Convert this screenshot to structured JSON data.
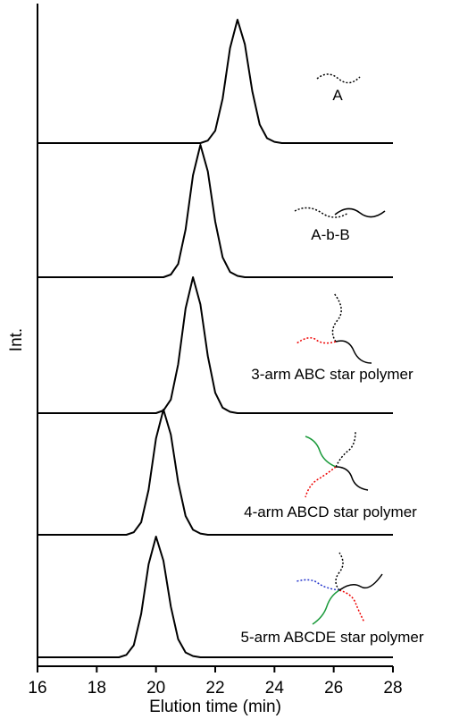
{
  "chart_data": {
    "type": "line",
    "xlabel": "Elution time (min)",
    "ylabel": "Int.",
    "x": [
      16,
      16.25,
      16.5,
      16.75,
      17,
      17.25,
      17.5,
      17.75,
      18,
      18.25,
      18.5,
      18.75,
      19,
      19.25,
      19.5,
      19.75,
      20,
      20.25,
      20.5,
      20.75,
      21,
      21.25,
      21.5,
      21.75,
      22,
      22.25,
      22.5,
      22.75,
      23,
      23.25,
      23.5,
      23.75,
      24,
      24.25,
      24.5,
      24.75,
      25,
      25.25,
      25.5,
      25.75,
      26,
      26.25,
      26.5,
      26.75,
      27,
      27.25,
      27.5,
      27.75,
      28
    ],
    "xlim": [
      16,
      28
    ],
    "xticks": [
      16,
      18,
      20,
      22,
      24,
      26,
      28
    ],
    "series": [
      {
        "name": "A",
        "color": "#000000",
        "values": [
          0,
          0,
          0,
          0,
          0,
          0,
          0,
          0,
          0,
          0,
          0,
          0,
          0,
          0,
          0,
          0,
          0,
          0,
          0,
          0,
          0,
          0,
          0,
          0.02,
          0.1,
          0.36,
          0.77,
          1,
          0.8,
          0.42,
          0.15,
          0.04,
          0.01,
          0,
          0,
          0,
          0,
          0,
          0,
          0,
          0,
          0,
          0,
          0,
          0,
          0,
          0,
          0,
          0
        ]
      },
      {
        "name": "A-b-B",
        "color": "#000000",
        "values": [
          0,
          0,
          0,
          0,
          0,
          0,
          0,
          0,
          0,
          0,
          0,
          0,
          0,
          0,
          0,
          0,
          0,
          0,
          0.02,
          0.1,
          0.36,
          0.77,
          1,
          0.8,
          0.42,
          0.15,
          0.04,
          0.01,
          0,
          0,
          0,
          0,
          0,
          0,
          0,
          0,
          0,
          0,
          0,
          0,
          0,
          0,
          0,
          0,
          0,
          0,
          0,
          0,
          0
        ]
      },
      {
        "name": "3-arm ABC star polymer",
        "color": "#000000",
        "values": [
          0,
          0,
          0,
          0,
          0,
          0,
          0,
          0,
          0,
          0,
          0,
          0,
          0,
          0,
          0,
          0,
          0,
          0.02,
          0.1,
          0.36,
          0.77,
          1,
          0.8,
          0.42,
          0.15,
          0.04,
          0.01,
          0,
          0,
          0,
          0,
          0,
          0,
          0,
          0,
          0,
          0,
          0,
          0,
          0,
          0,
          0,
          0,
          0,
          0,
          0,
          0,
          0,
          0
        ]
      },
      {
        "name": "4-arm ABCD star polymer",
        "color": "#000000",
        "values": [
          0,
          0,
          0,
          0,
          0,
          0,
          0,
          0,
          0,
          0,
          0,
          0,
          0,
          0.02,
          0.1,
          0.36,
          0.77,
          1,
          0.8,
          0.42,
          0.15,
          0.04,
          0.01,
          0,
          0,
          0,
          0,
          0,
          0,
          0,
          0,
          0,
          0,
          0,
          0,
          0,
          0,
          0,
          0,
          0,
          0,
          0,
          0,
          0,
          0,
          0,
          0,
          0,
          0
        ]
      },
      {
        "name": "5-arm ABCDE star polymer",
        "color": "#000000",
        "values": [
          0,
          0,
          0,
          0,
          0,
          0,
          0,
          0,
          0,
          0,
          0,
          0,
          0.02,
          0.1,
          0.36,
          0.77,
          1,
          0.8,
          0.42,
          0.15,
          0.04,
          0.01,
          0,
          0,
          0,
          0,
          0,
          0,
          0,
          0,
          0,
          0,
          0,
          0,
          0,
          0,
          0,
          0,
          0,
          0,
          0,
          0,
          0,
          0,
          0,
          0,
          0,
          0,
          0
        ]
      }
    ]
  }
}
